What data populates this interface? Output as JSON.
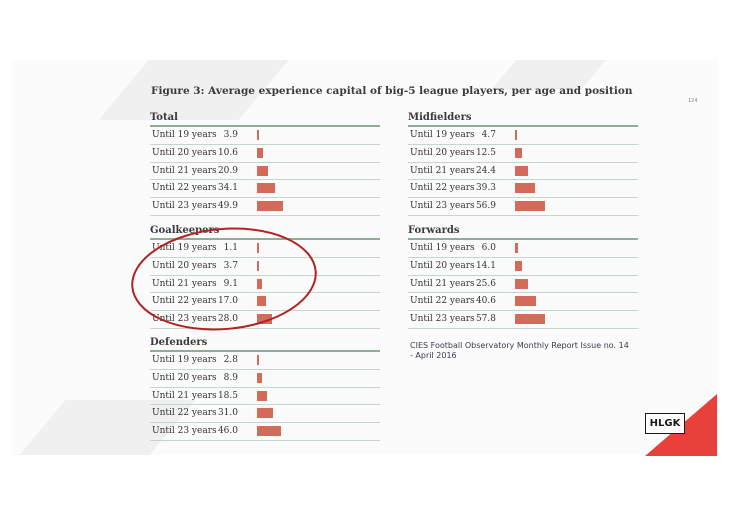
{
  "figure": {
    "title": "Figure 3: Average experience capital of big-5 league players, per age and position",
    "page_number": "124"
  },
  "chart_data": [
    {
      "type": "bar",
      "title": "Total",
      "categories": [
        "Until 19 years",
        "Until 20 years",
        "Until 21 years",
        "Until 22 years",
        "Until 23 years"
      ],
      "values": [
        3.9,
        10.6,
        20.9,
        34.1,
        49.9
      ],
      "value_labels": [
        "3.9",
        "10.6",
        "20.9",
        "34.1",
        "49.9"
      ]
    },
    {
      "type": "bar",
      "title": "Goalkeepers",
      "categories": [
        "Until 19 years",
        "Until 20 years",
        "Until 21 years",
        "Until 22 years",
        "Until 23 years"
      ],
      "values": [
        1.1,
        3.7,
        9.1,
        17.0,
        28.0
      ],
      "value_labels": [
        "1.1",
        "3.7",
        "9.1",
        "17.0",
        "28.0"
      ]
    },
    {
      "type": "bar",
      "title": "Defenders",
      "categories": [
        "Until 19 years",
        "Until 20 years",
        "Until 21 years",
        "Until 22 years",
        "Until 23 years"
      ],
      "values": [
        2.8,
        8.9,
        18.5,
        31.0,
        46.0
      ],
      "value_labels": [
        "2.8",
        "8.9",
        "18.5",
        "31.0",
        "46.0"
      ]
    },
    {
      "type": "bar",
      "title": "Midfielders",
      "categories": [
        "Until 19 years",
        "Until 20 years",
        "Until 21 years",
        "Until 22 years",
        "Until 23 years"
      ],
      "values": [
        4.7,
        12.5,
        24.4,
        39.3,
        56.9
      ],
      "value_labels": [
        "4.7",
        "12.5",
        "24.4",
        "39.3",
        "56.9"
      ]
    },
    {
      "type": "bar",
      "title": "Forwards",
      "categories": [
        "Until 19 years",
        "Until 20 years",
        "Until 21 years",
        "Until 22 years",
        "Until 23 years"
      ],
      "values": [
        6.0,
        14.1,
        25.6,
        40.6,
        57.8
      ],
      "value_labels": [
        "6.0",
        "14.1",
        "25.6",
        "40.6",
        "57.8"
      ]
    }
  ],
  "footnote": {
    "line1": "CIES Football Observatory Monthly Report Issue no. 14",
    "line2": "- April 2016"
  },
  "logo": {
    "text": "HLGK"
  },
  "colors": {
    "bar": "#d46a5a",
    "rule": "#8fae99",
    "highlight_circle": "#b32222",
    "corner": "#e8413a"
  }
}
